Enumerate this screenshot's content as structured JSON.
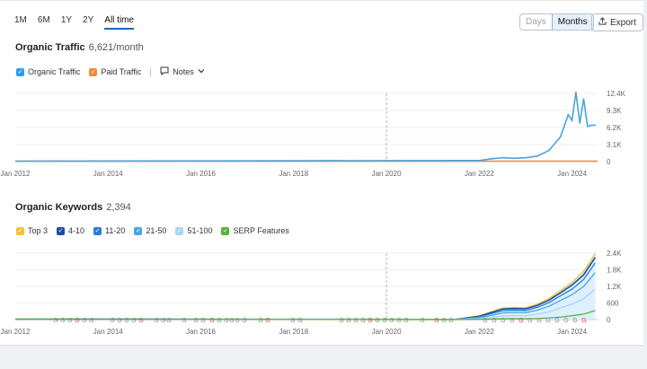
{
  "ranges": [
    "1M",
    "6M",
    "1Y",
    "2Y",
    "All time"
  ],
  "active_range": "All time",
  "view_toggle": {
    "days": "Days",
    "months": "Months"
  },
  "export_label": "Export",
  "traffic": {
    "title": "Organic Traffic",
    "value": "6,621/month",
    "legend": {
      "organic": "Organic Traffic",
      "paid": "Paid Traffic",
      "notes": "Notes"
    }
  },
  "keywords": {
    "title": "Organic Keywords",
    "value": "2,394",
    "legend": [
      "Top 3",
      "4-10",
      "11-20",
      "21-50",
      "51-100",
      "SERP Features"
    ]
  },
  "colors": {
    "accent": "#0068c9",
    "organic": "#4aa3df",
    "paid": "#f58a3c",
    "top3": "#f5c332",
    "k4_10": "#1a4fa3",
    "k11_20": "#2b7bd6",
    "k21_50": "#47a5e8",
    "k51_100": "#a6d5f7",
    "serp": "#5bb339"
  },
  "icons": {
    "notes": "speech-bubble-icon",
    "export": "upload-icon",
    "chevron": "chevron-down-icon"
  },
  "x_ticks": [
    "Jan 2012",
    "Jan 2014",
    "Jan 2016",
    "Jan 2018",
    "Jan 2020",
    "Jan 2022",
    "Jan 2024"
  ],
  "chart_data": [
    {
      "type": "line",
      "title": "Organic Traffic",
      "x": [
        "2022-01",
        "2022-04",
        "2022-07",
        "2022-10",
        "2023-01",
        "2023-04",
        "2023-07",
        "2023-10",
        "2023-12",
        "2024-01",
        "2024-02",
        "2024-03",
        "2024-04",
        "2024-05",
        "2024-06",
        "2024-07"
      ],
      "series": [
        {
          "name": "Organic Traffic",
          "values": [
            200,
            500,
            700,
            600,
            700,
            1000,
            2000,
            4500,
            8500,
            7500,
            12600,
            7000,
            11400,
            6400,
            6600,
            6621
          ]
        },
        {
          "name": "Paid Traffic",
          "values": [
            0,
            0,
            0,
            0,
            0,
            0,
            0,
            0,
            0,
            0,
            0,
            0,
            0,
            0,
            0,
            0
          ]
        }
      ],
      "y_ticks": [
        "12.4K",
        "9.3K",
        "6.2K",
        "3.1K",
        "0"
      ],
      "ylim": [
        0,
        12400
      ],
      "grid": true
    },
    {
      "type": "area",
      "title": "Organic Keywords",
      "x": [
        "2021-07",
        "2022-01",
        "2022-04",
        "2022-07",
        "2022-10",
        "2023-01",
        "2023-04",
        "2023-07",
        "2023-10",
        "2024-01",
        "2024-04",
        "2024-07"
      ],
      "series": [
        {
          "name": "Top 3",
          "values": [
            10,
            140,
            280,
            420,
            440,
            430,
            560,
            760,
            1050,
            1350,
            1750,
            2394
          ]
        },
        {
          "name": "4-10",
          "values": [
            8,
            120,
            250,
            380,
            400,
            390,
            510,
            700,
            970,
            1250,
            1620,
            2250
          ]
        },
        {
          "name": "11-20",
          "values": [
            6,
            100,
            210,
            320,
            340,
            330,
            440,
            610,
            860,
            1100,
            1450,
            2050
          ]
        },
        {
          "name": "21-50",
          "values": [
            4,
            70,
            150,
            240,
            260,
            250,
            340,
            480,
            690,
            900,
            1200,
            1700
          ]
        },
        {
          "name": "51-100",
          "values": [
            2,
            40,
            80,
            130,
            150,
            140,
            200,
            280,
            420,
            560,
            760,
            1100
          ]
        },
        {
          "name": "SERP Features",
          "values": [
            0,
            10,
            20,
            30,
            30,
            30,
            40,
            60,
            90,
            140,
            200,
            330
          ]
        }
      ],
      "y_ticks": [
        "2.4K",
        "1.8K",
        "1.2K",
        "600",
        "0"
      ],
      "ylim": [
        0,
        2400
      ],
      "grid": true
    }
  ]
}
